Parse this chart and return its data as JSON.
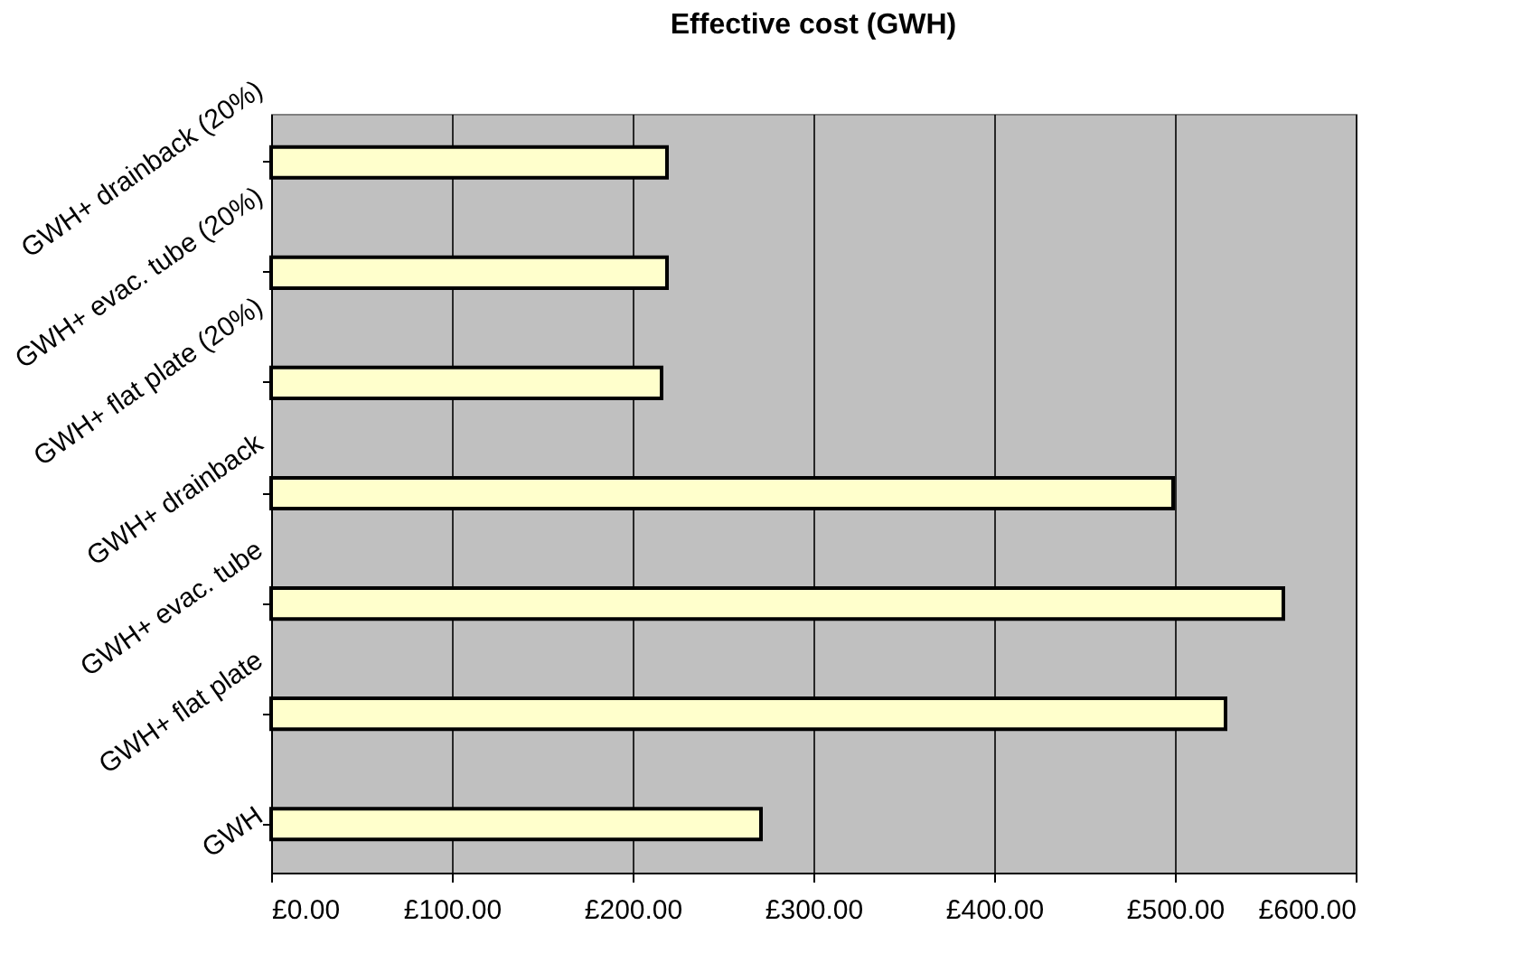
{
  "chart_data": {
    "type": "bar",
    "orientation": "horizontal",
    "title": "Effective cost (GWH)",
    "categories": [
      "GWH+ drainback (20%)",
      "GWH+ evac. tube (20%)",
      "GWH+ flat plate (20%)",
      "GWH+ drainback",
      "GWH+ evac. tube",
      "GWH+ flat plate",
      "GWH"
    ],
    "values": [
      219,
      219,
      216,
      499,
      560,
      528,
      271
    ],
    "color": "#ffffcc",
    "xlim": [
      0,
      600
    ],
    "xticks": [
      {
        "value": 0,
        "label": "£0.00"
      },
      {
        "value": 100,
        "label": "£100.00"
      },
      {
        "value": 200,
        "label": "£200.00"
      },
      {
        "value": 300,
        "label": "£300.00"
      },
      {
        "value": 400,
        "label": "£400.00"
      },
      {
        "value": 500,
        "label": "£500.00"
      },
      {
        "value": 600,
        "label": "£600.00"
      }
    ],
    "grid": "x"
  }
}
